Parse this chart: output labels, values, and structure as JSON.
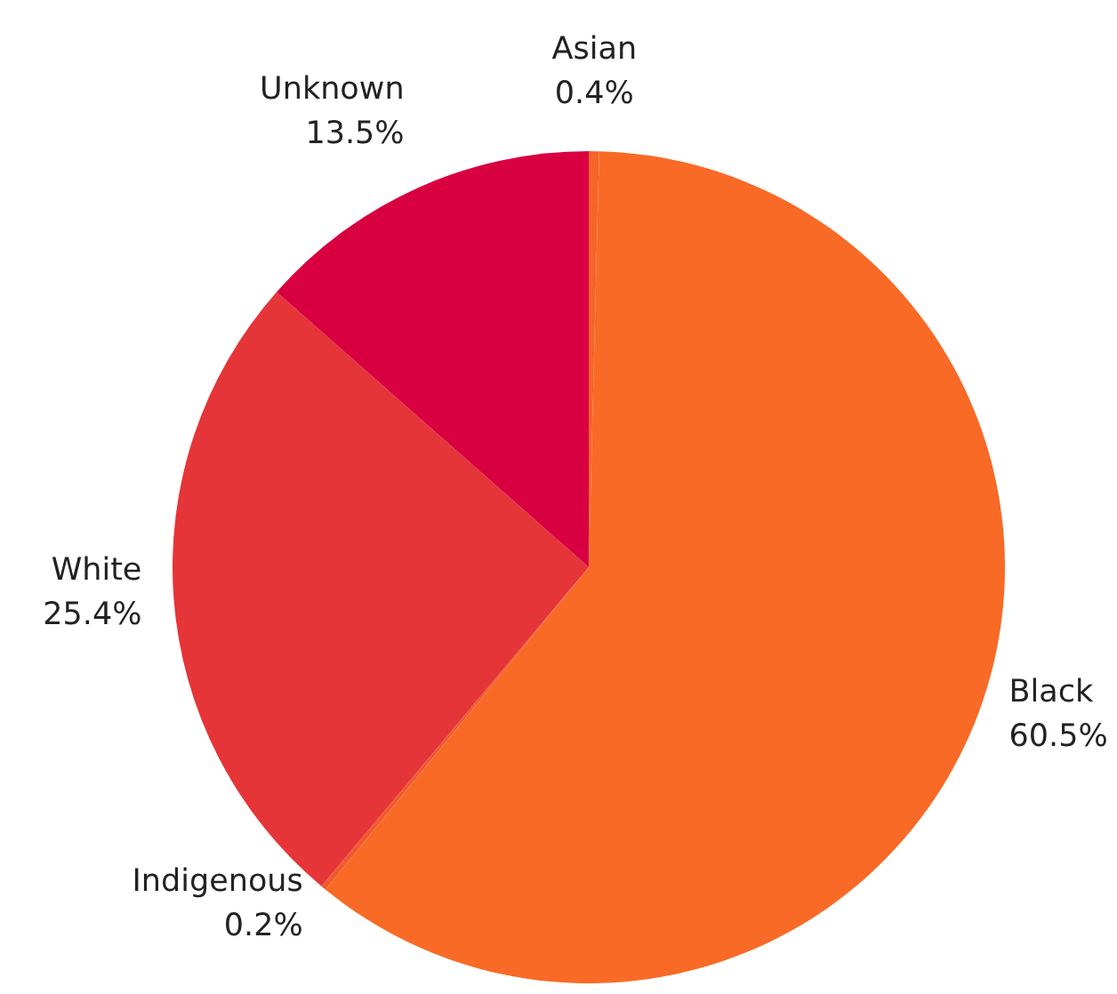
{
  "chart_data": {
    "type": "pie",
    "categories": [
      "Asian",
      "Black",
      "Indigenous",
      "White",
      "Unknown"
    ],
    "values": [
      0.4,
      60.5,
      0.2,
      25.4,
      13.5
    ],
    "colors": [
      "#f7642a",
      "#f96a26",
      "#ef5a2e",
      "#e53538",
      "#d80041"
    ],
    "value_labels": [
      "0.4%",
      "60.5%",
      "0.2%",
      "25.4%",
      "13.5%"
    ],
    "legend": false
  }
}
